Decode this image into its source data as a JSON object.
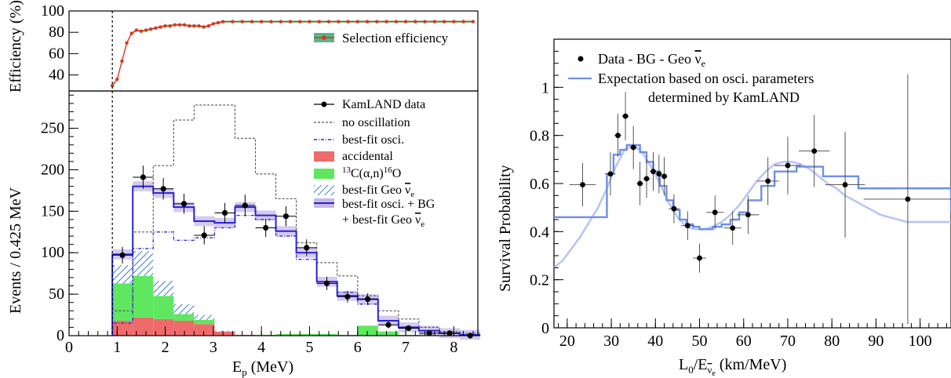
{
  "chart_data": [
    {
      "type": "line",
      "panel": "top-left",
      "ylabel": "Efficiency (%)",
      "xlim": [
        0,
        8.5
      ],
      "ylim": [
        25,
        100
      ],
      "yticks": [
        40,
        60,
        80,
        100
      ],
      "legend": [
        "Selection efficiency"
      ],
      "colors": {
        "line": "#d9381e",
        "band": "#5bb489"
      },
      "threshold_line_x": 0.9,
      "series": [
        {
          "name": "Selection efficiency",
          "x": [
            0.9,
            1.0,
            1.1,
            1.2,
            1.3,
            1.4,
            1.5,
            1.6,
            1.7,
            1.8,
            1.9,
            2.0,
            2.1,
            2.2,
            2.3,
            2.4,
            2.5,
            2.6,
            2.7,
            2.8,
            2.9,
            3.0,
            3.1,
            3.2,
            3.4,
            3.6,
            3.8,
            4.0,
            4.2,
            4.4,
            4.6,
            4.8,
            5.0,
            5.2,
            5.4,
            5.6,
            5.8,
            6.0,
            6.2,
            6.4,
            6.6,
            6.8,
            7.0,
            7.2,
            7.4,
            7.6,
            7.8,
            8.0,
            8.2,
            8.4
          ],
          "y": [
            30,
            36,
            53,
            70,
            79,
            82,
            81,
            82,
            83,
            84,
            85,
            86,
            86,
            87,
            87,
            87,
            86,
            86,
            86,
            85,
            86,
            88,
            89,
            90,
            90,
            90,
            90,
            90,
            90,
            90,
            90,
            90,
            90,
            90,
            90,
            90,
            90,
            90,
            90,
            90,
            90,
            90,
            90,
            90,
            90,
            90,
            90,
            90,
            90,
            90
          ]
        }
      ]
    },
    {
      "type": "bar",
      "panel": "bottom-left",
      "xlabel": "E",
      "xlabel_sub": "p",
      "xlabel_unit": " (MeV)",
      "ylabel": "Events / 0.425 MeV",
      "xlim": [
        0,
        8.5
      ],
      "ylim": [
        0,
        295
      ],
      "xticks": [
        0,
        1,
        2,
        3,
        4,
        5,
        6,
        7,
        8
      ],
      "yticks": [
        0,
        50,
        100,
        150,
        200,
        250
      ],
      "bin_edges": [
        0.9,
        1.325,
        1.75,
        2.175,
        2.6,
        3.025,
        3.45,
        3.875,
        4.3,
        4.725,
        5.15,
        5.575,
        6.0,
        6.425,
        6.85,
        7.275,
        7.7,
        8.125,
        8.55
      ],
      "legend": [
        {
          "label": "KamLAND data",
          "key": "data"
        },
        {
          "label": "no oscillation",
          "key": "noosc"
        },
        {
          "label": "best-fit osci.",
          "key": "bestosc"
        },
        {
          "label": "accidental",
          "key": "accidental"
        },
        {
          "label": "13C(α,n)16O",
          "key": "alphan",
          "sup1": "13",
          "main": "C(α,n)",
          "sup2": "16",
          "tail": "O"
        },
        {
          "label": "best-fit Geo ν̄e",
          "key": "geo",
          "main": "best-fit Geo ",
          "nu": "ν",
          "sub": "e"
        },
        {
          "label": "best-fit osci. + BG",
          "key": "total"
        },
        {
          "label": "+ best-fit Geo ν̄e",
          "key": "total2",
          "main": "+ best-fit Geo ",
          "nu": "ν",
          "sub": "e"
        }
      ],
      "colors": {
        "accidental": "#ef6b6b",
        "alphan": "#5fe85f",
        "geo": "#3a7fd0",
        "total": "#2424d6",
        "total_band": "#c8b8e8",
        "noosc": "#555555",
        "bestosc": "#2a2ad6"
      },
      "series": [
        {
          "name": "no oscillation",
          "values": [
            30,
            125,
            205,
            260,
            278,
            278,
            238,
            195,
            165,
            112,
            88,
            72,
            48,
            30,
            20,
            10,
            5,
            3
          ]
        },
        {
          "name": "best-fit osci.",
          "values": [
            15,
            105,
            125,
            115,
            118,
            130,
            145,
            140,
            120,
            92,
            65,
            52,
            38,
            18,
            10,
            6,
            3,
            1
          ]
        },
        {
          "name": "accidental",
          "values": [
            18,
            22,
            20,
            18,
            14,
            5,
            1,
            0,
            0,
            0,
            0,
            0,
            0,
            0,
            0,
            0,
            0,
            0
          ]
        },
        {
          "name": "13C(α,n)16O",
          "values": [
            45,
            50,
            28,
            8,
            5,
            0,
            0,
            1,
            2,
            2,
            2,
            1,
            12,
            5,
            1,
            0,
            0,
            0
          ]
        },
        {
          "name": "best-fit Geo ν̄e",
          "values": [
            22,
            30,
            18,
            12,
            6,
            1,
            0,
            0,
            0,
            0,
            0,
            0,
            0,
            0,
            0,
            0,
            0,
            0
          ]
        },
        {
          "name": "best-fit osci. + BG",
          "values": [
            98,
            180,
            172,
            155,
            138,
            136,
            155,
            145,
            126,
            100,
            65,
            48,
            44,
            18,
            10,
            6,
            3,
            1
          ]
        }
      ],
      "data_points": {
        "name": "KamLAND data",
        "x": [
          1.11,
          1.54,
          1.96,
          2.39,
          2.81,
          3.24,
          3.66,
          4.09,
          4.51,
          4.94,
          5.36,
          5.79,
          6.21,
          6.64,
          7.06,
          7.49,
          7.91,
          8.34
        ],
        "y": [
          97,
          191,
          177,
          159,
          121,
          148,
          157,
          130,
          144,
          106,
          63,
          47,
          44,
          13,
          9,
          3,
          3,
          0
        ],
        "yerr": [
          10,
          14,
          13,
          12,
          11,
          12,
          13,
          11,
          12,
          10,
          8,
          7,
          7,
          4,
          3,
          2,
          2,
          1
        ]
      }
    },
    {
      "type": "line",
      "panel": "right",
      "xlabel": "L",
      "xlabel_sub": "0",
      "xlabel_mid": "/E",
      "xlabel_nu": "ν",
      "xlabel_nu_sub": "e",
      "xlabel_unit": " (km/MeV)",
      "ylabel": "Survival Probability",
      "xlim": [
        17,
        107
      ],
      "ylim": [
        0,
        1.2
      ],
      "xticks": [
        20,
        30,
        40,
        50,
        60,
        70,
        80,
        90,
        100
      ],
      "yticks": [
        0,
        0.2,
        0.4,
        0.6,
        0.8,
        1
      ],
      "ytick_labels": [
        "0",
        "0.2",
        "0.4",
        "0.6",
        "0.8",
        "1"
      ],
      "legend": [
        {
          "label": "Data - BG - Geo ν̄e",
          "key": "data",
          "main": "Data - BG - Geo ",
          "nu": "ν",
          "sub": "e"
        },
        {
          "label": "Expectation based on osci. parameters",
          "key": "expect"
        },
        {
          "label": "determined by KamLAND",
          "key": "expect2"
        }
      ],
      "colors": {
        "step": "#6f8fe8",
        "smooth": "#b9c6f4",
        "points": "#000000"
      },
      "series": [
        {
          "name": "Expectation based on osci. parameters determined by KamLAND",
          "step_edges": [
            17,
            29,
            30.5,
            32,
            33.5,
            35,
            36.5,
            38,
            39.5,
            41,
            42.5,
            44,
            45.5,
            47,
            48.5,
            50,
            51.5,
            53,
            55,
            57,
            59,
            61,
            64,
            67,
            72,
            78,
            86,
            107
          ],
          "step_values": [
            0.46,
            0.64,
            0.72,
            0.74,
            0.76,
            0.76,
            0.73,
            0.69,
            0.65,
            0.59,
            0.53,
            0.49,
            0.45,
            0.43,
            0.42,
            0.41,
            0.41,
            0.42,
            0.43,
            0.45,
            0.48,
            0.53,
            0.59,
            0.65,
            0.67,
            0.63,
            0.58,
            0.48
          ]
        },
        {
          "name": "smooth expectation",
          "x": [
            17,
            19,
            21,
            23,
            25,
            27,
            29,
            31,
            33,
            35,
            37,
            39,
            41,
            43,
            45,
            47,
            49,
            51,
            53,
            55,
            57,
            59,
            61,
            63,
            65,
            67,
            69,
            71,
            73,
            75,
            77,
            79,
            81,
            83,
            85,
            87,
            89,
            91,
            93,
            95,
            97,
            99,
            101,
            103,
            105,
            107
          ],
          "y": [
            0.25,
            0.28,
            0.33,
            0.38,
            0.44,
            0.5,
            0.58,
            0.67,
            0.74,
            0.76,
            0.73,
            0.67,
            0.6,
            0.52,
            0.46,
            0.42,
            0.41,
            0.41,
            0.42,
            0.44,
            0.47,
            0.51,
            0.56,
            0.61,
            0.65,
            0.68,
            0.69,
            0.69,
            0.68,
            0.66,
            0.63,
            0.6,
            0.58,
            0.55,
            0.53,
            0.51,
            0.49,
            0.47,
            0.46,
            0.45,
            0.44,
            0.44,
            0.44,
            0.44,
            0.44,
            0.44
          ]
        }
      ],
      "data_points": {
        "name": "Data - BG - Geo ν̄e",
        "x": [
          23.5,
          29.8,
          31.5,
          33.2,
          35,
          36.5,
          38,
          39.5,
          40.8,
          42,
          44.2,
          47.3,
          50,
          53.5,
          57.5,
          61,
          65.5,
          70,
          76,
          83,
          97.2
        ],
        "y": [
          0.595,
          0.64,
          0.8,
          0.88,
          0.75,
          0.6,
          0.62,
          0.65,
          0.64,
          0.63,
          0.495,
          0.425,
          0.29,
          0.48,
          0.415,
          0.47,
          0.61,
          0.675,
          0.735,
          0.595,
          0.535
        ],
        "xerr": [
          3,
          1.2,
          0.8,
          0.8,
          0.8,
          0.8,
          0.8,
          0.8,
          0.7,
          0.7,
          1.2,
          1.5,
          1.5,
          2,
          2,
          2.5,
          2.5,
          3,
          3.5,
          4.5,
          10
        ],
        "yerr": [
          0.09,
          0.09,
          0.09,
          0.1,
          0.09,
          0.09,
          0.08,
          0.08,
          0.08,
          0.08,
          0.06,
          0.06,
          0.06,
          0.07,
          0.07,
          0.08,
          0.1,
          0.12,
          0.15,
          0.22,
          0.52
        ]
      }
    }
  ]
}
